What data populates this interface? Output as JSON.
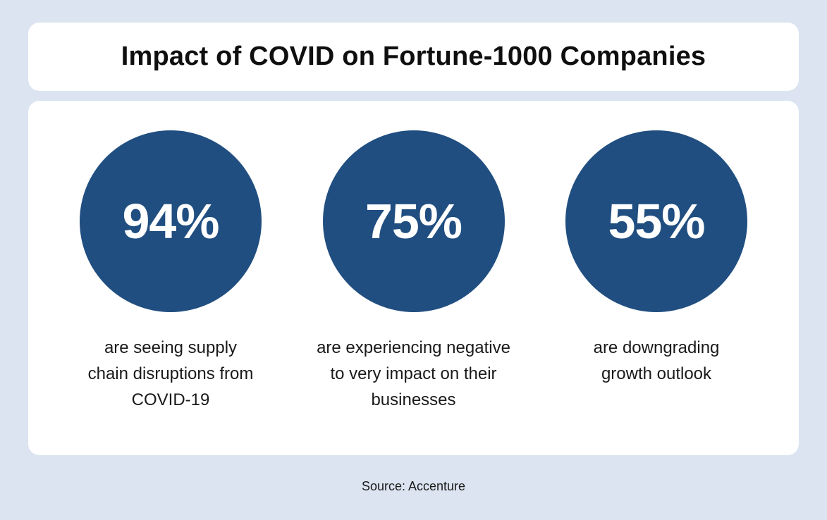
{
  "colors": {
    "page_background": "#dbe4f0",
    "card_background": "#ffffff",
    "accent": "#204e80",
    "circle_text": "#ffffff",
    "title_text": "#0f0f0f",
    "body_text": "#1a1a1a"
  },
  "header": {
    "title": "Impact of COVID on Fortune-1000 Companies"
  },
  "stats": [
    {
      "value": "94%",
      "caption_lines": [
        "are seeing supply",
        "chain disruptions from",
        "COVID-19"
      ]
    },
    {
      "value": "75%",
      "caption_lines": [
        "are experiencing negative",
        "to very impact on their",
        "businesses"
      ]
    },
    {
      "value": "55%",
      "caption_lines": [
        "are downgrading",
        "growth outlook"
      ]
    }
  ],
  "footer": {
    "source": "Source: Accenture"
  },
  "chart_data": {
    "type": "table",
    "title": "Impact of COVID on Fortune-1000 Companies",
    "categories": [
      "are seeing supply chain disruptions from COVID-19",
      "are experiencing negative to very impact on their businesses",
      "are downgrading growth outlook"
    ],
    "values": [
      94,
      75,
      55
    ],
    "unit": "%",
    "source": "Accenture",
    "legend_position": "none",
    "grid": false
  }
}
